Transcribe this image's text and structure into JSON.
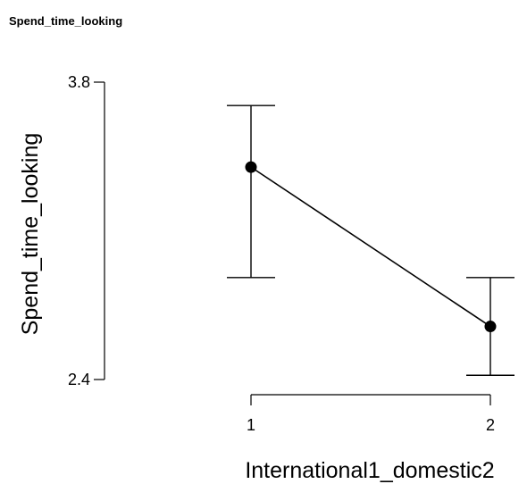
{
  "page_title": "Spend_time_looking",
  "chart_data": {
    "type": "line",
    "xlabel": "International1_domestic2",
    "ylabel": "Spend_time_looking",
    "x_ticks": [
      "1",
      "2"
    ],
    "y_ticks": [
      "2.4",
      "3.8"
    ],
    "ylim": [
      2.4,
      3.8
    ],
    "error_bars": true,
    "grid": false,
    "series": [
      {
        "points": [
          {
            "x": "1",
            "y": 3.4,
            "lower": 2.88,
            "upper": 3.69
          },
          {
            "x": "2",
            "y": 2.65,
            "lower": 2.42,
            "upper": 2.88
          }
        ]
      }
    ],
    "colors": {
      "line": "#000000",
      "marker": "#000000"
    }
  }
}
